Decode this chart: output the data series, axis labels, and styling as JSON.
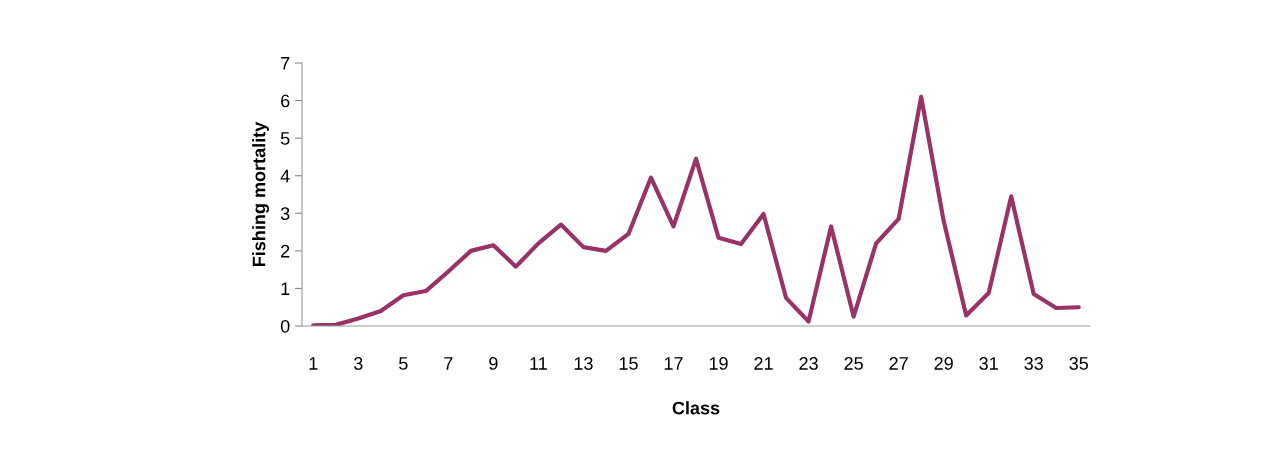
{
  "chart_data": {
    "type": "line",
    "xlabel": "Class",
    "ylabel": "Fishing mortality",
    "categories": [
      "1",
      null,
      "3",
      null,
      "5",
      null,
      "7",
      null,
      "9",
      null,
      "11",
      null,
      "13",
      null,
      "15",
      null,
      "17",
      null,
      "19",
      null,
      "21",
      null,
      "23",
      null,
      "25",
      null,
      "27",
      null,
      "29",
      null,
      "31",
      null,
      "33",
      null,
      "35"
    ],
    "series": [
      {
        "color": "#993366",
        "values": [
          0.02,
          0.03,
          0.2,
          0.4,
          0.82,
          0.93,
          1.45,
          2.0,
          2.15,
          1.58,
          2.2,
          2.7,
          2.1,
          2.0,
          2.45,
          3.95,
          2.65,
          4.45,
          2.35,
          2.18,
          2.98,
          0.75,
          0.12,
          2.65,
          0.25,
          2.2,
          2.85,
          6.1,
          2.8,
          0.28,
          0.88,
          3.45,
          0.85,
          0.48,
          0.5
        ]
      }
    ],
    "ylim": [
      0,
      7
    ],
    "yticks": [
      0,
      1,
      2,
      3,
      4,
      5,
      6,
      7
    ],
    "grid": false,
    "legend": false,
    "marker": "none",
    "line_style": "solid"
  }
}
